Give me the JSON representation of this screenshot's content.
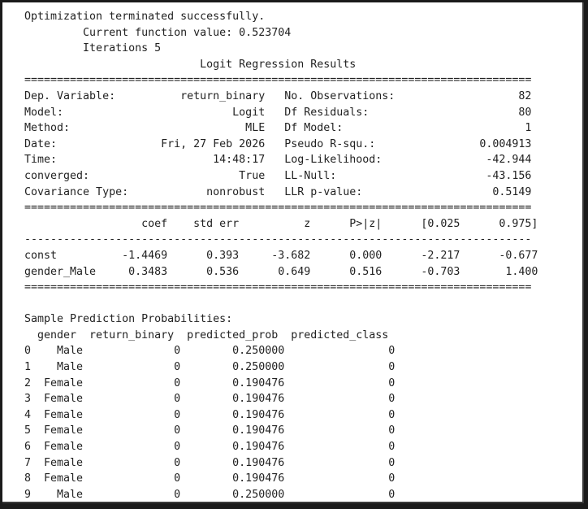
{
  "output": {
    "header": [
      "Optimization terminated successfully.",
      "         Current function value: 0.523704",
      "         Iterations 5",
      "                           Logit Regression Results"
    ],
    "separator_double": "==============================================================================",
    "separator_single": "------------------------------------------------------------------------------",
    "summary_rows": [
      "Dep. Variable:          return_binary   No. Observations:                   82",
      "Model:                          Logit   Df Residuals:                       80",
      "Method:                           MLE   Df Model:                            1",
      "Date:                Fri, 27 Feb 2026   Pseudo R-squ.:                0.004913",
      "Time:                        14:48:17   Log-Likelihood:                -42.944",
      "converged:                       True   LL-Null:                       -43.156",
      "Covariance Type:            nonrobust   LLR p-value:                    0.5149"
    ],
    "coef_header": "                  coef    std err          z      P>|z|      [0.025      0.975]",
    "coef_rows": [
      "const          -1.4469      0.393     -3.682      0.000      -2.217      -0.677",
      "gender_Male     0.3483      0.536      0.649      0.516      -0.703       1.400"
    ],
    "sample_title": "Sample Prediction Probabilities:",
    "sample_header": "  gender  return_binary  predicted_prob  predicted_class",
    "sample_rows": [
      "0    Male              0        0.250000                0",
      "1    Male              0        0.250000                0",
      "2  Female              0        0.190476                0",
      "3  Female              0        0.190476                0",
      "4  Female              0        0.190476                0",
      "5  Female              0        0.190476                0",
      "6  Female              0        0.190476                0",
      "7  Female              0        0.190476                0",
      "8  Female              0        0.190476                0",
      "9    Male              0        0.250000                0"
    ]
  }
}
